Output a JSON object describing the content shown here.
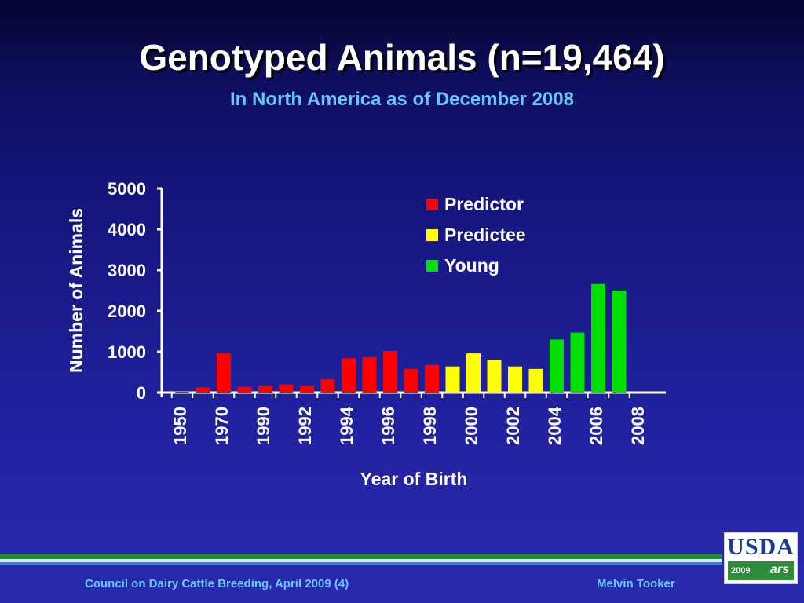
{
  "title": "Genotyped Animals (n=19,464)",
  "subtitle": "In North America as of December 2008",
  "footer": {
    "left": "Council on Dairy Cattle Breeding, April 2009 (4)",
    "right": "Melvin Tooker"
  },
  "logo": {
    "text": "USDA",
    "year": "2009",
    "mark": "ars"
  },
  "colors": {
    "Predictor": "#ff0000",
    "Predictee": "#ffff00",
    "Young": "#00e000"
  },
  "chart_data": {
    "type": "bar",
    "xlabel": "Year of Birth",
    "ylabel": "Number of Animals",
    "ylim": [
      0,
      5000
    ],
    "yticks": [
      0,
      1000,
      2000,
      3000,
      4000,
      5000
    ],
    "xtick_labels": [
      "1950",
      "1970",
      "1990",
      "1992",
      "1994",
      "1996",
      "1998",
      "2000",
      "2002",
      "2004",
      "2006",
      "2008"
    ],
    "legend": [
      "Predictor",
      "Predictee",
      "Young"
    ],
    "legend_position": "top-right",
    "grid": false,
    "bars": [
      {
        "value": 20,
        "group": "Predictor"
      },
      {
        "value": 130,
        "group": "Predictor"
      },
      {
        "value": 960,
        "group": "Predictor"
      },
      {
        "value": 140,
        "group": "Predictor"
      },
      {
        "value": 170,
        "group": "Predictor"
      },
      {
        "value": 200,
        "group": "Predictor"
      },
      {
        "value": 170,
        "group": "Predictor"
      },
      {
        "value": 330,
        "group": "Predictor"
      },
      {
        "value": 840,
        "group": "Predictor"
      },
      {
        "value": 870,
        "group": "Predictor"
      },
      {
        "value": 1020,
        "group": "Predictor"
      },
      {
        "value": 580,
        "group": "Predictor"
      },
      {
        "value": 680,
        "group": "Predictor"
      },
      {
        "value": 640,
        "group": "Predictee"
      },
      {
        "value": 960,
        "group": "Predictee"
      },
      {
        "value": 800,
        "group": "Predictee"
      },
      {
        "value": 640,
        "group": "Predictee"
      },
      {
        "value": 580,
        "group": "Predictee"
      },
      {
        "value": 1300,
        "group": "Young"
      },
      {
        "value": 1470,
        "group": "Young"
      },
      {
        "value": 2660,
        "group": "Young"
      },
      {
        "value": 2500,
        "group": "Young"
      }
    ]
  }
}
